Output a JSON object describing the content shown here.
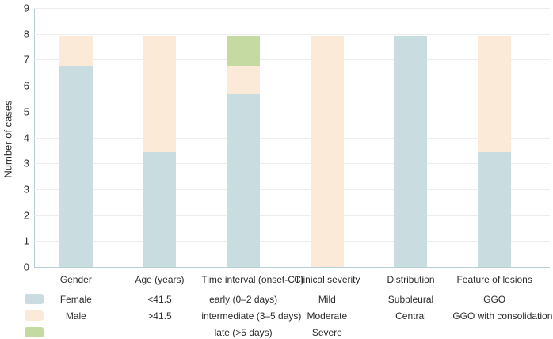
{
  "figure": {
    "ylabel": "Number of cases"
  },
  "chart_data": {
    "type": "bar",
    "stacked": true,
    "title": "",
    "xlabel": "",
    "ylabel": "Number of cases",
    "ylim": [
      0,
      9
    ],
    "y_axis_tick_labels_top_to_bottom": [
      "9",
      "8",
      "7",
      "6",
      "5",
      "4",
      "3",
      "3",
      "2",
      "1",
      "0"
    ],
    "grid": "horizontal",
    "legend_position": "below, aligned to category columns",
    "series_colors": {
      "blue": "#c9dcdf",
      "peach": "#fcead9",
      "green": "#c5d9a3"
    },
    "categories": [
      "Gender",
      "Age (years)",
      "Time interval (onset-CT)",
      "Clinical severity",
      "Distribution",
      "Feature of lesions"
    ],
    "stacks": [
      {
        "category": "Gender",
        "segments": [
          {
            "label": "Female",
            "color": "blue",
            "value": 7
          },
          {
            "label": "Male",
            "color": "peach",
            "value": 1
          }
        ]
      },
      {
        "category": "Age (years)",
        "segments": [
          {
            "label": "<41.5",
            "color": "blue",
            "value": 4
          },
          {
            "label": ">41.5",
            "color": "peach",
            "value": 4
          }
        ]
      },
      {
        "category": "Time interval (onset-CT)",
        "segments": [
          {
            "label": "early (0–2 days)",
            "color": "blue",
            "value": 6
          },
          {
            "label": "intermediate (3–5 days)",
            "color": "peach",
            "value": 1
          },
          {
            "label": "late (>5 days)",
            "color": "green",
            "value": 1
          }
        ]
      },
      {
        "category": "Clinical severity",
        "segments": [
          {
            "label": "Mild",
            "color": "blue",
            "value": 0
          },
          {
            "label": "Moderate",
            "color": "peach",
            "value": 8
          },
          {
            "label": "Severe",
            "color": "green",
            "value": 0
          }
        ]
      },
      {
        "category": "Distribution",
        "segments": [
          {
            "label": "Subpleural",
            "color": "blue",
            "value": 8
          },
          {
            "label": "Central",
            "color": "peach",
            "value": 0
          }
        ]
      },
      {
        "category": "Feature of lesions",
        "segments": [
          {
            "label": "GGO",
            "color": "blue",
            "value": 4
          },
          {
            "label": "GGO with consolidation",
            "color": "peach",
            "value": 4
          }
        ]
      }
    ],
    "legend_rows": [
      {
        "swatch": "blue",
        "items": [
          "Female",
          "<41.5",
          "early (0–2 days)",
          "Mild",
          "Subpleural",
          "GGO"
        ]
      },
      {
        "swatch": "peach",
        "items": [
          "Male",
          ">41.5",
          "intermediate (3–5 days)",
          "Moderate",
          "Central",
          "GGO with consolidation"
        ]
      },
      {
        "swatch": "green",
        "items": [
          "",
          "",
          "late (>5 days)",
          "Severe",
          "",
          ""
        ]
      }
    ]
  }
}
